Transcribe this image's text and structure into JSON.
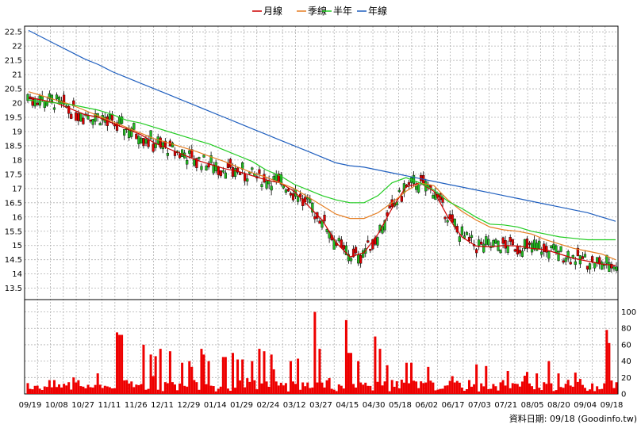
{
  "chart_data": [
    {
      "type": "candlestick",
      "panel": "price",
      "y_ticks": [
        "22.5",
        "22",
        "21.5",
        "21",
        "20.5",
        "20",
        "19.5",
        "19",
        "18.5",
        "18",
        "17.5",
        "17",
        "16.5",
        "16",
        "15.5",
        "15",
        "14.5",
        "14",
        "13.5"
      ],
      "ylim": [
        13.1,
        22.7
      ],
      "x_labels": [
        "09/19",
        "10/08",
        "10/27",
        "11/11",
        "11/26",
        "12/11",
        "12/29",
        "01/14",
        "01/29",
        "02/24",
        "03/12",
        "03/27",
        "04/15",
        "04/30",
        "05/18",
        "06/02",
        "06/17",
        "07/03",
        "07/21",
        "08/05",
        "08/20",
        "09/04",
        "09/18"
      ],
      "grid": true,
      "legend_position": "top-center",
      "series": [
        {
          "name": "月線",
          "color": "#cc0000",
          "values": [
            20.2,
            20.1,
            20.0,
            19.8,
            19.6,
            19.5,
            19.3,
            19.1,
            18.9,
            18.6,
            18.4,
            18.2,
            18.0,
            17.85,
            17.7,
            17.6,
            17.45,
            17.3,
            17.2,
            16.9,
            16.4,
            15.9,
            15.1,
            14.6,
            14.75,
            15.4,
            16.3,
            17.05,
            17.2,
            16.9,
            16.0,
            15.3,
            14.98,
            14.95,
            15.0,
            14.98,
            14.9,
            14.85,
            14.7,
            14.55,
            14.45,
            14.35,
            14.3
          ]
        },
        {
          "name": "季線",
          "color": "#e67e22",
          "values": [
            20.4,
            20.25,
            20.1,
            19.95,
            19.75,
            19.55,
            19.35,
            19.15,
            18.95,
            18.75,
            18.6,
            18.45,
            18.3,
            18.12,
            17.95,
            17.75,
            17.55,
            17.4,
            17.2,
            17.0,
            16.7,
            16.4,
            16.1,
            15.95,
            15.95,
            16.15,
            16.5,
            16.9,
            17.2,
            17.1,
            16.6,
            16.2,
            15.9,
            15.65,
            15.55,
            15.5,
            15.4,
            15.2,
            15.05,
            14.9,
            14.8,
            14.7,
            14.5
          ]
        },
        {
          "name": "半年",
          "color": "#22cc22",
          "values": [
            20.1,
            20.05,
            20.0,
            19.95,
            19.85,
            19.75,
            19.6,
            19.4,
            19.3,
            19.15,
            19.0,
            18.85,
            18.7,
            18.55,
            18.35,
            18.15,
            17.95,
            17.65,
            17.45,
            17.15,
            16.95,
            16.75,
            16.6,
            16.5,
            16.5,
            16.75,
            17.2,
            17.38,
            17.2,
            16.95,
            16.55,
            16.3,
            16.0,
            15.75,
            15.72,
            15.65,
            15.5,
            15.4,
            15.3,
            15.25,
            15.2,
            15.2,
            15.2
          ]
        },
        {
          "name": "年線",
          "color": "#1f5fbf",
          "values": [
            22.55,
            22.3,
            22.05,
            21.8,
            21.55,
            21.35,
            21.1,
            20.9,
            20.7,
            20.5,
            20.3,
            20.1,
            19.9,
            19.7,
            19.5,
            19.3,
            19.1,
            18.9,
            18.7,
            18.5,
            18.3,
            18.1,
            17.9,
            17.8,
            17.75,
            17.65,
            17.55,
            17.45,
            17.35,
            17.25,
            17.15,
            17.05,
            16.95,
            16.85,
            16.75,
            16.65,
            16.55,
            16.45,
            16.35,
            16.25,
            16.15,
            16.0,
            15.85
          ]
        }
      ]
    },
    {
      "type": "bar",
      "panel": "volume",
      "y_ticks": [
        "100",
        "80",
        "60",
        "40",
        "20",
        "0"
      ],
      "ylim": [
        0,
        115
      ]
    }
  ],
  "footer": {
    "text": "資料日期: 09/18 (Goodinfo.tw)"
  }
}
